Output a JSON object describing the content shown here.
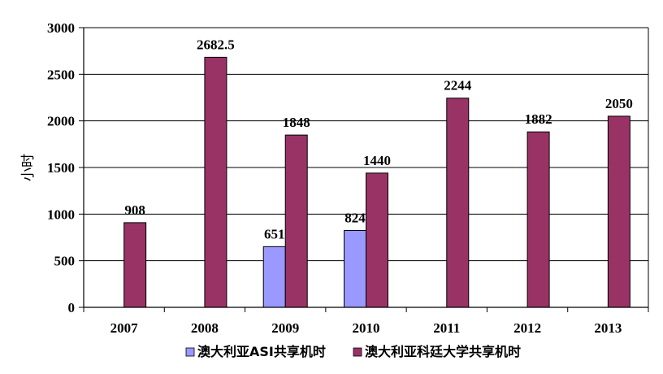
{
  "chart_data": {
    "type": "bar",
    "categories": [
      "2007",
      "2008",
      "2009",
      "2010",
      "2011",
      "2012",
      "2013"
    ],
    "series": [
      {
        "name": "澳大利亚ASI共享机时",
        "color": "#9999ff",
        "values": [
          null,
          null,
          651,
          824,
          null,
          null,
          null
        ],
        "labels": [
          "",
          "",
          "651",
          "824",
          "",
          "",
          ""
        ]
      },
      {
        "name": "澳大利亚科廷大学共享机时",
        "color": "#993366",
        "values": [
          908,
          2682.5,
          1848,
          1440,
          2244,
          1882,
          2050
        ],
        "labels": [
          "908",
          "2682.5",
          "1848",
          "1440",
          "2244",
          "1882",
          "2050"
        ]
      }
    ],
    "xlabel": "",
    "ylabel": "小时",
    "ylim": [
      0,
      3000
    ],
    "yticks": [
      "0",
      "500",
      "1000",
      "1500",
      "2000",
      "2500",
      "3000"
    ],
    "grid": true,
    "legend_position": "bottom"
  }
}
